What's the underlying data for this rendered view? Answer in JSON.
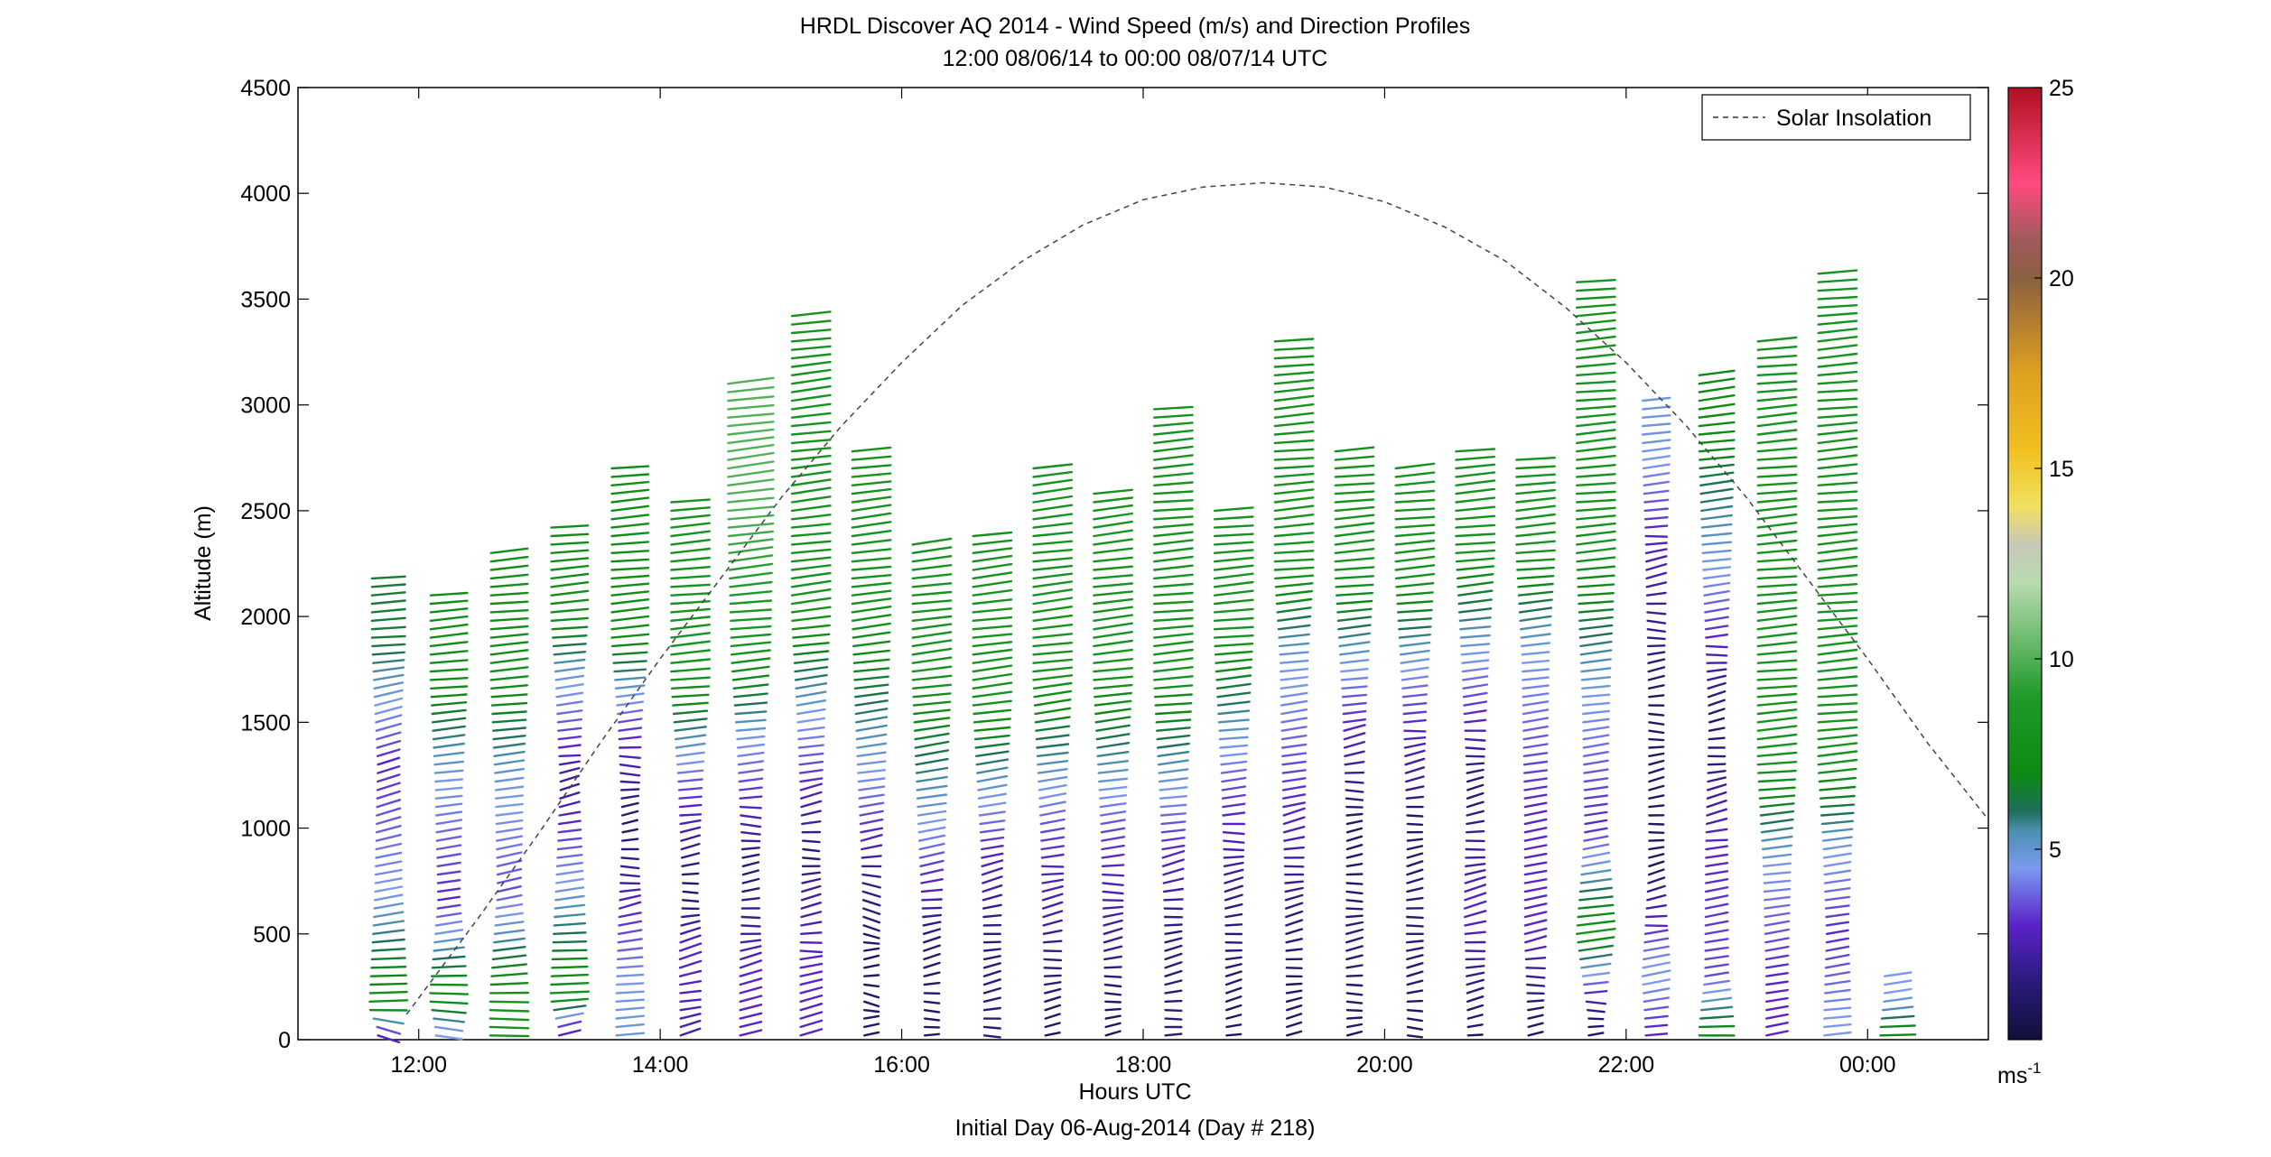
{
  "chart_data": {
    "type": "wind-barb-profile",
    "title": "HRDL Discover AQ 2014 - Wind Speed (m/s) and Direction Profiles",
    "subtitle": "12:00 08/06/14 to 00:00 08/07/14  UTC",
    "xlabel": "Hours UTC",
    "xlabel2": "Initial Day 06-Aug-2014 (Day # 218)",
    "ylabel": "Altitude (m)",
    "xlim": [
      11,
      25
    ],
    "ylim": [
      0,
      4500
    ],
    "x_ticks": [
      12,
      14,
      16,
      18,
      20,
      22,
      24
    ],
    "x_tick_labels": [
      "12:00",
      "14:00",
      "16:00",
      "18:00",
      "20:00",
      "22:00",
      "00:00"
    ],
    "y_ticks": [
      0,
      500,
      1000,
      1500,
      2000,
      2500,
      3000,
      3500,
      4000,
      4500
    ],
    "y_tick_labels": [
      "0",
      "500",
      "1000",
      "1500",
      "2000",
      "2500",
      "3000",
      "3500",
      "4000",
      "4500"
    ],
    "colorbar": {
      "range": [
        0,
        25
      ],
      "ticks": [
        5,
        10,
        15,
        20,
        25
      ],
      "tick_labels": [
        "5",
        "10",
        "15",
        "20",
        "25"
      ],
      "unit_label": "ms",
      "unit_exponent": "-1",
      "stops": [
        {
          "v": 0.0,
          "c": "#10103a"
        },
        {
          "v": 1.5,
          "c": "#2a1a7a"
        },
        {
          "v": 3.0,
          "c": "#5a22c8"
        },
        {
          "v": 4.5,
          "c": "#7a9af0"
        },
        {
          "v": 5.5,
          "c": "#4b8fb0"
        },
        {
          "v": 6.0,
          "c": "#1f6e5a"
        },
        {
          "v": 7.0,
          "c": "#0c8a12"
        },
        {
          "v": 9.0,
          "c": "#1f9a2a"
        },
        {
          "v": 12.0,
          "c": "#b8dcb0"
        },
        {
          "v": 13.0,
          "c": "#c8c8b8"
        },
        {
          "v": 14.0,
          "c": "#f2e060"
        },
        {
          "v": 15.5,
          "c": "#f0c020"
        },
        {
          "v": 17.5,
          "c": "#e0a020"
        },
        {
          "v": 20.0,
          "c": "#8a6040"
        },
        {
          "v": 21.0,
          "c": "#a05a5a"
        },
        {
          "v": 22.5,
          "c": "#ff4a80"
        },
        {
          "v": 25.0,
          "c": "#b01020"
        }
      ]
    },
    "legend": {
      "entries": [
        "Solar Insolation"
      ],
      "placement": "top-right",
      "style": "dashed"
    },
    "solar_insolation": {
      "peak_hour": 19.0,
      "peak_altitude": 4050,
      "x": [
        11.9,
        12.5,
        13.0,
        13.5,
        14.0,
        14.5,
        15.0,
        15.5,
        16.0,
        16.5,
        17.0,
        17.5,
        18.0,
        18.5,
        19.0,
        19.5,
        20.0,
        20.5,
        21.0,
        21.5,
        22.0,
        22.5,
        23.0,
        23.5,
        24.0,
        24.5,
        25.0
      ],
      "y": [
        120,
        580,
        980,
        1400,
        1800,
        2180,
        2560,
        2900,
        3200,
        3470,
        3680,
        3850,
        3970,
        4030,
        4050,
        4030,
        3960,
        3840,
        3680,
        3460,
        3200,
        2900,
        2560,
        2180,
        1800,
        1400,
        1040
      ]
    },
    "profiles": [
      {
        "hour": 11.75,
        "top": 2200,
        "segments": [
          [
            50,
            3,
            200
          ],
          [
            150,
            8,
            270
          ],
          [
            700,
            4.5,
            300
          ],
          [
            1300,
            3,
            340
          ],
          [
            1900,
            6.5,
            280
          ]
        ]
      },
      {
        "hour": 12.25,
        "top": 2100,
        "segments": [
          [
            50,
            4.5,
            240
          ],
          [
            200,
            8,
            270
          ],
          [
            650,
            3,
            300
          ],
          [
            1200,
            4.5,
            290
          ],
          [
            1700,
            7.5,
            285
          ]
        ]
      },
      {
        "hour": 12.75,
        "top": 2300,
        "segments": [
          [
            200,
            8,
            270
          ],
          [
            700,
            3.5,
            310
          ],
          [
            1200,
            4.8,
            290
          ],
          [
            1700,
            7.5,
            285
          ]
        ]
      },
      {
        "hour": 13.25,
        "top": 2450,
        "segments": [
          [
            50,
            3,
            320
          ],
          [
            200,
            8,
            270
          ],
          [
            700,
            4.8,
            290
          ],
          [
            1200,
            2,
            300
          ],
          [
            1700,
            4.8,
            290
          ],
          [
            2000,
            7.5,
            285
          ]
        ]
      },
      {
        "hour": 13.75,
        "top": 2700,
        "segments": [
          [
            200,
            4.8,
            280
          ],
          [
            600,
            3,
            300
          ],
          [
            1000,
            1,
            280
          ],
          [
            1500,
            3.5,
            290
          ],
          [
            1900,
            7.5,
            285
          ]
        ]
      },
      {
        "hour": 14.25,
        "top": 2550,
        "segments": [
          [
            50,
            2.5,
            330
          ],
          [
            400,
            3,
            320
          ],
          [
            700,
            1,
            290
          ],
          [
            1200,
            3.5,
            290
          ],
          [
            1700,
            8,
            285
          ]
        ]
      },
      {
        "hour": 14.75,
        "top": 3100,
        "segments": [
          [
            300,
            3,
            320
          ],
          [
            800,
            1.2,
            280
          ],
          [
            1400,
            4.5,
            290
          ],
          [
            1800,
            8,
            285
          ],
          [
            2500,
            10,
            290
          ]
        ]
      },
      {
        "hour": 15.25,
        "top": 3450,
        "segments": [
          [
            50,
            3,
            330
          ],
          [
            400,
            3,
            300
          ],
          [
            900,
            1.5,
            290
          ],
          [
            1500,
            4.5,
            295
          ],
          [
            2000,
            8,
            290
          ]
        ]
      },
      {
        "hour": 15.75,
        "top": 2800,
        "segments": [
          [
            100,
            1,
            270
          ],
          [
            400,
            1,
            40
          ],
          [
            800,
            2,
            300
          ],
          [
            1300,
            4.8,
            295
          ],
          [
            2000,
            8,
            290
          ]
        ]
      },
      {
        "hour": 16.25,
        "top": 2350,
        "segments": [
          [
            100,
            1,
            280
          ],
          [
            500,
            1.5,
            320
          ],
          [
            1000,
            4.5,
            300
          ],
          [
            1700,
            8,
            290
          ]
        ]
      },
      {
        "hour": 16.75,
        "top": 2400,
        "segments": [
          [
            100,
            1.5,
            290
          ],
          [
            500,
            1.5,
            310
          ],
          [
            900,
            3,
            300
          ],
          [
            1600,
            8,
            290
          ]
        ]
      },
      {
        "hour": 17.25,
        "top": 2700,
        "segments": [
          [
            100,
            1,
            300
          ],
          [
            500,
            2,
            300
          ],
          [
            1000,
            3.5,
            300
          ],
          [
            1700,
            8,
            290
          ]
        ]
      },
      {
        "hour": 17.75,
        "top": 2600,
        "segments": [
          [
            100,
            1,
            290
          ],
          [
            500,
            2,
            290
          ],
          [
            1000,
            3.5,
            295
          ],
          [
            1700,
            8,
            290
          ]
        ]
      },
      {
        "hour": 18.25,
        "top": 3000,
        "segments": [
          [
            100,
            1.5,
            300
          ],
          [
            500,
            1.5,
            310
          ],
          [
            1000,
            3.5,
            290
          ],
          [
            1700,
            8,
            285
          ]
        ]
      },
      {
        "hour": 18.75,
        "top": 2500,
        "segments": [
          [
            100,
            1,
            320
          ],
          [
            600,
            1.5,
            300
          ],
          [
            1200,
            3.5,
            290
          ],
          [
            1900,
            8,
            285
          ]
        ]
      },
      {
        "hour": 19.25,
        "top": 3300,
        "segments": [
          [
            100,
            1,
            300
          ],
          [
            600,
            1.5,
            310
          ],
          [
            1100,
            3,
            300
          ],
          [
            1800,
            4.8,
            290
          ],
          [
            2200,
            8,
            285
          ]
        ]
      },
      {
        "hour": 19.75,
        "top": 2800,
        "segments": [
          [
            100,
            1,
            290
          ],
          [
            500,
            1.5,
            290
          ],
          [
            1000,
            1,
            290
          ],
          [
            1600,
            3.5,
            290
          ],
          [
            2200,
            8,
            285
          ]
        ]
      },
      {
        "hour": 20.25,
        "top": 2700,
        "segments": [
          [
            100,
            1,
            280
          ],
          [
            500,
            1.5,
            300
          ],
          [
            1000,
            1,
            300
          ],
          [
            1600,
            3.5,
            290
          ],
          [
            2200,
            8,
            285
          ]
        ]
      },
      {
        "hour": 20.75,
        "top": 2800,
        "segments": [
          [
            100,
            1,
            300
          ],
          [
            600,
            3,
            310
          ],
          [
            1200,
            1.2,
            300
          ],
          [
            1800,
            4.5,
            290
          ],
          [
            2300,
            8,
            285
          ]
        ]
      },
      {
        "hour": 21.25,
        "top": 2750,
        "segments": [
          [
            100,
            1,
            280
          ],
          [
            500,
            3,
            310
          ],
          [
            1100,
            3,
            300
          ],
          [
            1800,
            4.5,
            290
          ],
          [
            2300,
            8,
            285
          ]
        ]
      },
      {
        "hour": 21.75,
        "top": 3600,
        "segments": [
          [
            100,
            1,
            290
          ],
          [
            500,
            8,
            290
          ],
          [
            1000,
            3,
            300
          ],
          [
            1600,
            4.5,
            290
          ],
          [
            2300,
            8,
            285
          ]
        ]
      },
      {
        "hour": 22.25,
        "top": 3050,
        "segments": [
          [
            50,
            3,
            290
          ],
          [
            300,
            4.8,
            300
          ],
          [
            800,
            1,
            310
          ],
          [
            1600,
            1,
            280
          ],
          [
            2400,
            3,
            290
          ],
          [
            2800,
            4.8,
            290
          ]
        ]
      },
      {
        "hour": 22.75,
        "top": 3150,
        "segments": [
          [
            50,
            7,
            270
          ],
          [
            300,
            3.5,
            300
          ],
          [
            900,
            3,
            300
          ],
          [
            1500,
            1,
            310
          ],
          [
            2200,
            4.5,
            290
          ],
          [
            2800,
            7,
            290
          ]
        ]
      },
      {
        "hour": 23.25,
        "top": 3300,
        "segments": [
          [
            300,
            3,
            300
          ],
          [
            800,
            4.5,
            290
          ],
          [
            1300,
            8,
            285
          ],
          [
            2200,
            8,
            285
          ]
        ]
      },
      {
        "hour": 23.75,
        "top": 3620,
        "segments": [
          [
            100,
            4.5,
            290
          ],
          [
            500,
            3,
            300
          ],
          [
            900,
            4.8,
            290
          ],
          [
            1300,
            8,
            285
          ],
          [
            2500,
            8,
            285
          ]
        ]
      },
      {
        "hour": 24.25,
        "top": 300,
        "segments": [
          [
            50,
            7,
            280
          ],
          [
            200,
            4.5,
            290
          ]
        ]
      }
    ]
  }
}
